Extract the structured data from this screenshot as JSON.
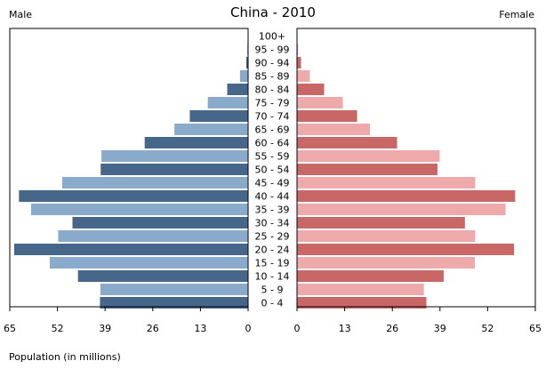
{
  "chart_data": {
    "type": "bar",
    "title": "China - 2010",
    "left_label": "Male",
    "right_label": "Female",
    "xlabel": "Population (in millions)",
    "xlim": [
      0,
      65
    ],
    "x_ticks": [
      "65",
      "52",
      "39",
      "26",
      "13",
      "0"
    ],
    "x_ticks_right": [
      "0",
      "13",
      "26",
      "39",
      "52",
      "65"
    ],
    "categories": [
      "100+",
      "95 - 99",
      "90 - 94",
      "85 - 89",
      "80 - 84",
      "75 - 79",
      "70 - 74",
      "65 - 69",
      "60 - 64",
      "55 - 59",
      "50 - 54",
      "45 - 49",
      "40 - 44",
      "35 - 39",
      "30 - 34",
      "25 - 29",
      "20 - 24",
      "15 - 19",
      "10 - 14",
      "5 - 9",
      "0 - 4"
    ],
    "series": [
      {
        "name": "Male",
        "values": [
          0.1,
          0.2,
          0.5,
          2.2,
          5.7,
          11.0,
          15.9,
          20.1,
          28.2,
          40.0,
          40.2,
          50.7,
          62.5,
          59.2,
          47.9,
          51.8,
          63.8,
          54.1,
          46.4,
          40.3,
          40.4
        ]
      },
      {
        "name": "Female",
        "values": [
          0.1,
          0.3,
          1.1,
          3.5,
          7.4,
          12.5,
          16.4,
          19.9,
          27.3,
          38.9,
          38.3,
          48.6,
          59.5,
          56.9,
          45.8,
          48.6,
          59.2,
          48.5,
          40.0,
          34.6,
          35.3
        ]
      }
    ],
    "colors": {
      "male_dark": "#46668a",
      "male_light": "#8aaacc",
      "female_dark": "#c96666",
      "female_light": "#eeaaaa",
      "frame": "#000000"
    },
    "grid": false,
    "legend": "none"
  }
}
